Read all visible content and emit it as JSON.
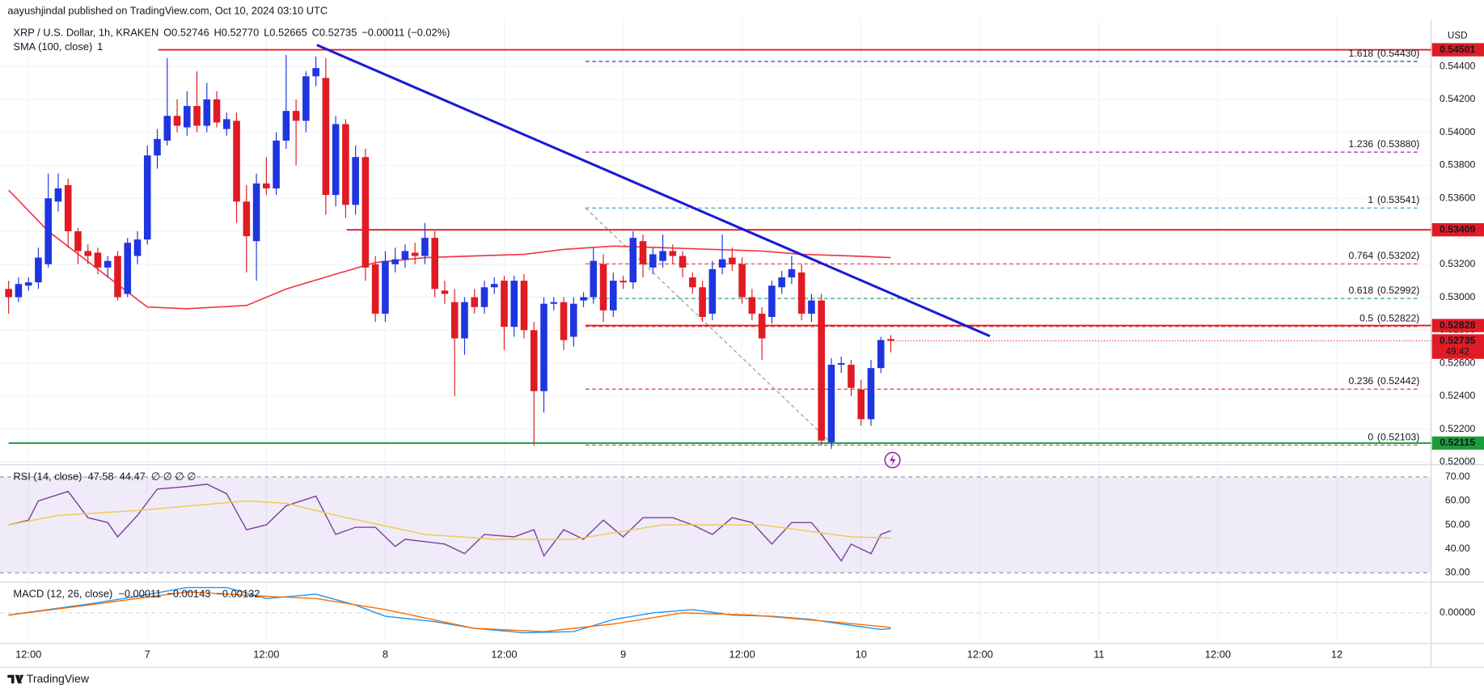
{
  "header": {
    "publisher": "aayushjindal published on TradingView.com, Oct 10, 2024 03:10 UTC",
    "currency": "USD",
    "brand": "TradingView"
  },
  "legend": {
    "symbol": "XRP / U.S. Dollar, 1h, KRAKEN",
    "ohlc": [
      "O0.52746",
      "H0.52770",
      "L0.52665",
      "C0.52735"
    ],
    "change": "−0.00011 (−0.02%)",
    "sma": "SMA (100, close)",
    "sma_value": "1"
  },
  "chart_data": [
    {
      "type": "candlestick",
      "up_color": "#1f35e0",
      "down_color": "#e01b24",
      "grid": true,
      "xlim": [
        9.13,
        153.5
      ],
      "xticks": [
        {
          "value": 12,
          "label": "12:00"
        },
        {
          "value": 24,
          "label": "7"
        },
        {
          "value": 36,
          "label": "12:00"
        },
        {
          "value": 48,
          "label": "8"
        },
        {
          "value": 60,
          "label": "12:00"
        },
        {
          "value": 72,
          "label": "9"
        },
        {
          "value": 84,
          "label": "12:00"
        },
        {
          "value": 96,
          "label": "10"
        },
        {
          "value": 108,
          "label": "12:00"
        },
        {
          "value": 120,
          "label": "11"
        },
        {
          "value": 132,
          "label": "12:00"
        },
        {
          "value": 144,
          "label": "12"
        }
      ],
      "ylim": [
        0.51989,
        0.54802
      ],
      "yticks": [
        {
          "value": 0.52,
          "label": "0.52000"
        },
        {
          "value": 0.522,
          "label": "0.52200"
        },
        {
          "value": 0.524,
          "label": "0.52400"
        },
        {
          "value": 0.526,
          "label": "0.52600"
        },
        {
          "value": 0.528,
          "label": "0.52800"
        },
        {
          "value": 0.53,
          "label": "0.53000"
        },
        {
          "value": 0.532,
          "label": "0.53200"
        },
        {
          "value": 0.534,
          "label": "0.53400"
        },
        {
          "value": 0.536,
          "label": "0.53600"
        },
        {
          "value": 0.538,
          "label": "0.53800"
        },
        {
          "value": 0.54,
          "label": "0.54000"
        },
        {
          "value": 0.542,
          "label": "0.54200"
        },
        {
          "value": 0.544,
          "label": "0.54400"
        }
      ],
      "candles": [
        [
          10,
          0.5305,
          0.531,
          0.529,
          0.53
        ],
        [
          11,
          0.53,
          0.5312,
          0.5297,
          0.5308
        ],
        [
          12,
          0.5307,
          0.5312,
          0.5304,
          0.5309
        ],
        [
          13,
          0.5309,
          0.533,
          0.5305,
          0.5324
        ],
        [
          14,
          0.532,
          0.5375,
          0.5318,
          0.536
        ],
        [
          15,
          0.5358,
          0.5375,
          0.5352,
          0.5366
        ],
        [
          16,
          0.5368,
          0.5372,
          0.533,
          0.534
        ],
        [
          17,
          0.534,
          0.5342,
          0.532,
          0.5328
        ],
        [
          18,
          0.5328,
          0.5332,
          0.532,
          0.5325
        ],
        [
          19,
          0.5327,
          0.533,
          0.5314,
          0.5318
        ],
        [
          20,
          0.5318,
          0.5325,
          0.5312,
          0.5322
        ],
        [
          21,
          0.5325,
          0.5328,
          0.5298,
          0.53
        ],
        [
          22,
          0.5302,
          0.5336,
          0.53,
          0.5333
        ],
        [
          23,
          0.5325,
          0.534,
          0.532,
          0.5335
        ],
        [
          24,
          0.5335,
          0.5392,
          0.5332,
          0.5386
        ],
        [
          25,
          0.5386,
          0.5402,
          0.5378,
          0.5396
        ],
        [
          26,
          0.5395,
          0.5445,
          0.5392,
          0.541
        ],
        [
          27,
          0.541,
          0.542,
          0.54,
          0.5404
        ],
        [
          28,
          0.5403,
          0.5425,
          0.5398,
          0.5416
        ],
        [
          29,
          0.5416,
          0.5437,
          0.54,
          0.5404
        ],
        [
          30,
          0.5404,
          0.543,
          0.54,
          0.542
        ],
        [
          31,
          0.542,
          0.5425,
          0.5403,
          0.5406
        ],
        [
          32,
          0.5402,
          0.5412,
          0.5398,
          0.5408
        ],
        [
          33,
          0.5407,
          0.5412,
          0.5345,
          0.5358
        ],
        [
          34,
          0.5358,
          0.5368,
          0.5315,
          0.5337
        ],
        [
          35,
          0.5334,
          0.5375,
          0.531,
          0.5369
        ],
        [
          36,
          0.5369,
          0.5385,
          0.5362,
          0.5366
        ],
        [
          37,
          0.5366,
          0.54,
          0.5362,
          0.5395
        ],
        [
          38,
          0.5395,
          0.5447,
          0.539,
          0.5413
        ],
        [
          39,
          0.5413,
          0.542,
          0.538,
          0.5407
        ],
        [
          40,
          0.5407,
          0.5437,
          0.54,
          0.5434
        ],
        [
          41,
          0.5434,
          0.5446,
          0.5428,
          0.5439
        ],
        [
          42,
          0.5433,
          0.5445,
          0.535,
          0.5362
        ],
        [
          43,
          0.5362,
          0.541,
          0.5355,
          0.5405
        ],
        [
          44,
          0.5405,
          0.5408,
          0.5348,
          0.5356
        ],
        [
          45,
          0.5356,
          0.5392,
          0.535,
          0.5385
        ],
        [
          46,
          0.5385,
          0.539,
          0.531,
          0.5318
        ],
        [
          47,
          0.532,
          0.5325,
          0.5285,
          0.529
        ],
        [
          48,
          0.529,
          0.5328,
          0.5285,
          0.5322
        ],
        [
          49,
          0.532,
          0.533,
          0.5315,
          0.5323
        ],
        [
          50,
          0.5323,
          0.5332,
          0.5318,
          0.5328
        ],
        [
          51,
          0.5327,
          0.5333,
          0.532,
          0.5325
        ],
        [
          52,
          0.5325,
          0.5345,
          0.532,
          0.5336
        ],
        [
          53,
          0.5336,
          0.534,
          0.53,
          0.5305
        ],
        [
          54,
          0.5304,
          0.531,
          0.5296,
          0.5302
        ],
        [
          55,
          0.5297,
          0.5305,
          0.524,
          0.5275
        ],
        [
          56,
          0.5275,
          0.53,
          0.5265,
          0.5297
        ],
        [
          57,
          0.53,
          0.5305,
          0.529,
          0.5294
        ],
        [
          58,
          0.5294,
          0.531,
          0.529,
          0.5306
        ],
        [
          59,
          0.5306,
          0.5312,
          0.5302,
          0.5308
        ],
        [
          60,
          0.531,
          0.5313,
          0.5268,
          0.5282
        ],
        [
          61,
          0.5282,
          0.5313,
          0.5276,
          0.531
        ],
        [
          62,
          0.531,
          0.5314,
          0.5275,
          0.528
        ],
        [
          63,
          0.528,
          0.5285,
          0.521,
          0.5243
        ],
        [
          64,
          0.5243,
          0.53,
          0.523,
          0.5296
        ],
        [
          65,
          0.5296,
          0.53,
          0.5292,
          0.5297
        ],
        [
          66,
          0.5297,
          0.53,
          0.5268,
          0.5274
        ],
        [
          67,
          0.5276,
          0.53,
          0.527,
          0.5296
        ],
        [
          68,
          0.5298,
          0.5303,
          0.5294,
          0.53
        ],
        [
          69,
          0.53,
          0.533,
          0.5296,
          0.5322
        ],
        [
          70,
          0.532,
          0.5326,
          0.5285,
          0.5292
        ],
        [
          71,
          0.5292,
          0.5315,
          0.5288,
          0.531
        ],
        [
          72,
          0.531,
          0.5313,
          0.5305,
          0.5309
        ],
        [
          73,
          0.5309,
          0.534,
          0.5305,
          0.5336
        ],
        [
          74,
          0.5334,
          0.5338,
          0.5312,
          0.532
        ],
        [
          75,
          0.5318,
          0.533,
          0.5314,
          0.5326
        ],
        [
          76,
          0.5322,
          0.5338,
          0.5318,
          0.5328
        ],
        [
          77,
          0.5328,
          0.5332,
          0.532,
          0.5325
        ],
        [
          78,
          0.5325,
          0.5328,
          0.5312,
          0.5318
        ],
        [
          79,
          0.5312,
          0.5315,
          0.5302,
          0.5306
        ],
        [
          80,
          0.5306,
          0.531,
          0.5285,
          0.5288
        ],
        [
          81,
          0.529,
          0.5322,
          0.5286,
          0.5317
        ],
        [
          82,
          0.5318,
          0.5338,
          0.5314,
          0.5323
        ],
        [
          83,
          0.5324,
          0.533,
          0.5316,
          0.532
        ],
        [
          84,
          0.532,
          0.5324,
          0.5296,
          0.53
        ],
        [
          85,
          0.53,
          0.5305,
          0.5286,
          0.529
        ],
        [
          86,
          0.529,
          0.5294,
          0.5262,
          0.5275
        ],
        [
          87,
          0.5288,
          0.531,
          0.5284,
          0.5307
        ],
        [
          88,
          0.5306,
          0.5316,
          0.5302,
          0.5312
        ],
        [
          89,
          0.5312,
          0.5325,
          0.5308,
          0.5317
        ],
        [
          90,
          0.5315,
          0.532,
          0.5286,
          0.529
        ],
        [
          91,
          0.529,
          0.5302,
          0.5285,
          0.5298
        ],
        [
          92,
          0.5298,
          0.5302,
          0.521,
          0.5213
        ],
        [
          93,
          0.5212,
          0.5263,
          0.5208,
          0.5259
        ],
        [
          94,
          0.5259,
          0.5264,
          0.5254,
          0.526
        ],
        [
          95,
          0.5259,
          0.5262,
          0.524,
          0.5245
        ],
        [
          96,
          0.5244,
          0.525,
          0.5222,
          0.5226
        ],
        [
          97,
          0.5226,
          0.5262,
          0.5222,
          0.5257
        ],
        [
          98,
          0.5257,
          0.5276,
          0.5254,
          0.5274
        ],
        [
          99,
          0.52746,
          0.5277,
          0.52665,
          0.52735
        ]
      ],
      "sma": {
        "color": "#f23645",
        "x": [
          10,
          14,
          19,
          24,
          28,
          34,
          38,
          43,
          47,
          52,
          57,
          62,
          66,
          71,
          76,
          81,
          86,
          90,
          95,
          99
        ],
        "values": [
          0.5365,
          0.534,
          0.5317,
          0.5294,
          0.5293,
          0.5295,
          0.5305,
          0.5314,
          0.5321,
          0.5324,
          0.5325,
          0.5326,
          0.5329,
          0.5331,
          0.533,
          0.5329,
          0.5328,
          0.5326,
          0.5325,
          0.5324
        ]
      },
      "levels": [
        {
          "value": 0.54501,
          "label": "0.54501",
          "color": "#e01b24",
          "from": 25.1
        },
        {
          "value": 0.53409,
          "label": "0.53409",
          "color": "#e01b24",
          "from": 44.1
        },
        {
          "value": 0.52828,
          "label": "0.52828",
          "color": "#e01b24",
          "from": 68.2
        },
        {
          "value": 0.52115,
          "label": "0.52115",
          "color": "#1e9b3a",
          "from": 10
        }
      ],
      "fibs": [
        {
          "level": "1.618",
          "value": 0.5443,
          "label": "(0.54430)",
          "color": "#3f3fb5",
          "from": 68.2
        },
        {
          "level": "1.236",
          "value": 0.5388,
          "label": "(0.53880)",
          "color": "#9c27b0",
          "from": 68.2
        },
        {
          "level": "1",
          "value": 0.53541,
          "label": "(0.53541)",
          "color": "#3fa7c4",
          "from": 68.2
        },
        {
          "level": "0.764",
          "value": 0.53202,
          "label": "(0.53202)",
          "color": "#e53935",
          "from": 68.2
        },
        {
          "level": "0.618",
          "value": 0.52992,
          "label": "(0.52992)",
          "color": "#1e9b6a",
          "from": 68.2
        },
        {
          "level": "0.5",
          "value": 0.52822,
          "label": "(0.52822)",
          "color": "#e53935",
          "from": 68.2
        },
        {
          "level": "0.236",
          "value": 0.52442,
          "label": "(0.52442)",
          "color": "#e53935",
          "from": 68.2
        },
        {
          "level": "0",
          "value": 0.52103,
          "label": "(0.52103)",
          "color": "#787b86",
          "from": 68.2
        }
      ],
      "fib_diagonal": {
        "color": "#9598a1",
        "x": [
          68.2,
          93.2
        ],
        "values": [
          0.53541,
          0.52103
        ]
      },
      "trendline": {
        "color": "#1a1ad6",
        "x": [
          41.1,
          109
        ],
        "values": [
          0.5453,
          0.52764
        ]
      },
      "last": {
        "value": 0.52735,
        "label": "0.52735",
        "countdown": "49:42",
        "color": "#e01b24"
      }
    },
    {
      "type": "line",
      "title": "RSI (14, close)",
      "extras": "∅ ∅ ∅ ∅",
      "ylim": [
        26.5,
        74.7
      ],
      "yticks": [
        {
          "value": 70,
          "label": "70.00"
        },
        {
          "value": 60,
          "label": "60.00"
        },
        {
          "value": 50,
          "label": "50.00"
        },
        {
          "value": 40,
          "label": "40.00"
        },
        {
          "value": 30,
          "label": "30.00"
        }
      ],
      "band": [
        30,
        70
      ],
      "band_color": "#7e57c2",
      "series": [
        {
          "color": "#7e3f9e",
          "value_label": "47.58",
          "x": [
            10,
            12,
            13,
            16,
            18,
            20,
            21,
            23,
            25,
            28,
            30,
            32,
            34,
            36,
            38,
            41,
            43,
            45,
            47,
            49,
            50,
            52,
            54,
            56,
            58,
            61,
            63,
            64,
            66,
            68,
            70,
            72,
            74,
            77,
            79,
            81,
            83,
            85,
            87,
            89,
            91,
            92,
            94,
            95,
            97,
            98,
            99
          ],
          "values": [
            50,
            52,
            60,
            64,
            53,
            51,
            45,
            54,
            65,
            66,
            67,
            63,
            48,
            50,
            58,
            62,
            46,
            49,
            49,
            41,
            44,
            43,
            42,
            38,
            46,
            45,
            48,
            37,
            48,
            44,
            52,
            45,
            53,
            53,
            50,
            46,
            53,
            51,
            42,
            51,
            51,
            46,
            35,
            42,
            38,
            46,
            47.58
          ]
        },
        {
          "color": "#f2c94c",
          "value_label": "44.47",
          "x": [
            10,
            15,
            23,
            34,
            38,
            43,
            52,
            59,
            67,
            76,
            86,
            95,
            99
          ],
          "values": [
            50,
            54,
            56,
            60,
            59,
            54,
            46,
            44,
            44,
            50,
            50,
            45,
            44.47
          ]
        }
      ]
    },
    {
      "type": "line",
      "title": "MACD (12, 26, close)",
      "histogram_label": "−0.00011",
      "ylim": [
        -0.0027,
        0.0027
      ],
      "yticks": [
        {
          "value": 0,
          "label": "0.00000"
        }
      ],
      "series": [
        {
          "color": "#2196f3",
          "value_label": "−0.00143",
          "x": [
            10,
            14,
            18,
            23,
            28,
            32,
            36,
            41,
            45,
            48,
            53,
            57,
            62,
            67,
            71,
            75,
            79,
            83,
            87,
            91,
            94,
            98,
            99
          ],
          "values": [
            -0.0002,
            0.0003,
            0.0008,
            0.0015,
            0.0023,
            0.0023,
            0.0013,
            0.0017,
            0.0007,
            -0.0003,
            -0.0008,
            -0.0014,
            -0.0018,
            -0.0017,
            -0.0006,
            0,
            0.0003,
            -0.0002,
            -0.0003,
            -0.0006,
            -0.001,
            -0.0015,
            -0.00143
          ]
        },
        {
          "color": "#ff6d00",
          "value_label": "−0.00132",
          "x": [
            10,
            18,
            28,
            36,
            41,
            48,
            57,
            64,
            71,
            78,
            85,
            93,
            99
          ],
          "values": [
            -0.0002,
            0.0007,
            0.0019,
            0.0015,
            0.0013,
            0.0003,
            -0.0014,
            -0.0017,
            -0.001,
            0,
            -0.0002,
            -0.0008,
            -0.00132
          ]
        }
      ]
    }
  ]
}
